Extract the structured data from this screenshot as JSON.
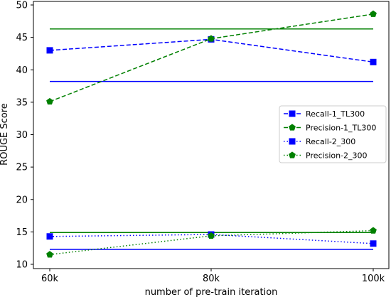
{
  "chart_data": {
    "type": "line",
    "xlabel": "number of pre-train iteration",
    "ylabel": "ROUGE Score",
    "categories": [
      "60k",
      "80k",
      "100k"
    ],
    "ylim": [
      10,
      50
    ],
    "yticks": [
      10,
      15,
      20,
      25,
      30,
      35,
      40,
      45,
      50
    ],
    "grid": false,
    "legend_position": "center-right",
    "series": [
      {
        "name": "Recall-1_TL300",
        "values": [
          43.0,
          44.7,
          41.2
        ],
        "color": "#0000ff",
        "dash": "dashed",
        "marker": "square"
      },
      {
        "name": "Precision-1_TL300",
        "values": [
          35.1,
          44.8,
          48.6
        ],
        "color": "#008000",
        "dash": "dashed",
        "marker": "pentagon"
      },
      {
        "name": "Recall-2_300",
        "values": [
          14.3,
          14.6,
          13.2
        ],
        "color": "#0000ff",
        "dash": "dotted",
        "marker": "square"
      },
      {
        "name": "Precision-2_300",
        "values": [
          11.5,
          14.4,
          15.2
        ],
        "color": "#008000",
        "dash": "dotted",
        "marker": "pentagon"
      }
    ],
    "reference_lines": [
      {
        "value": 46.3,
        "color": "#008000"
      },
      {
        "value": 38.2,
        "color": "#0000ff"
      },
      {
        "value": 14.9,
        "color": "#008000"
      },
      {
        "value": 12.3,
        "color": "#0000ff"
      }
    ]
  }
}
